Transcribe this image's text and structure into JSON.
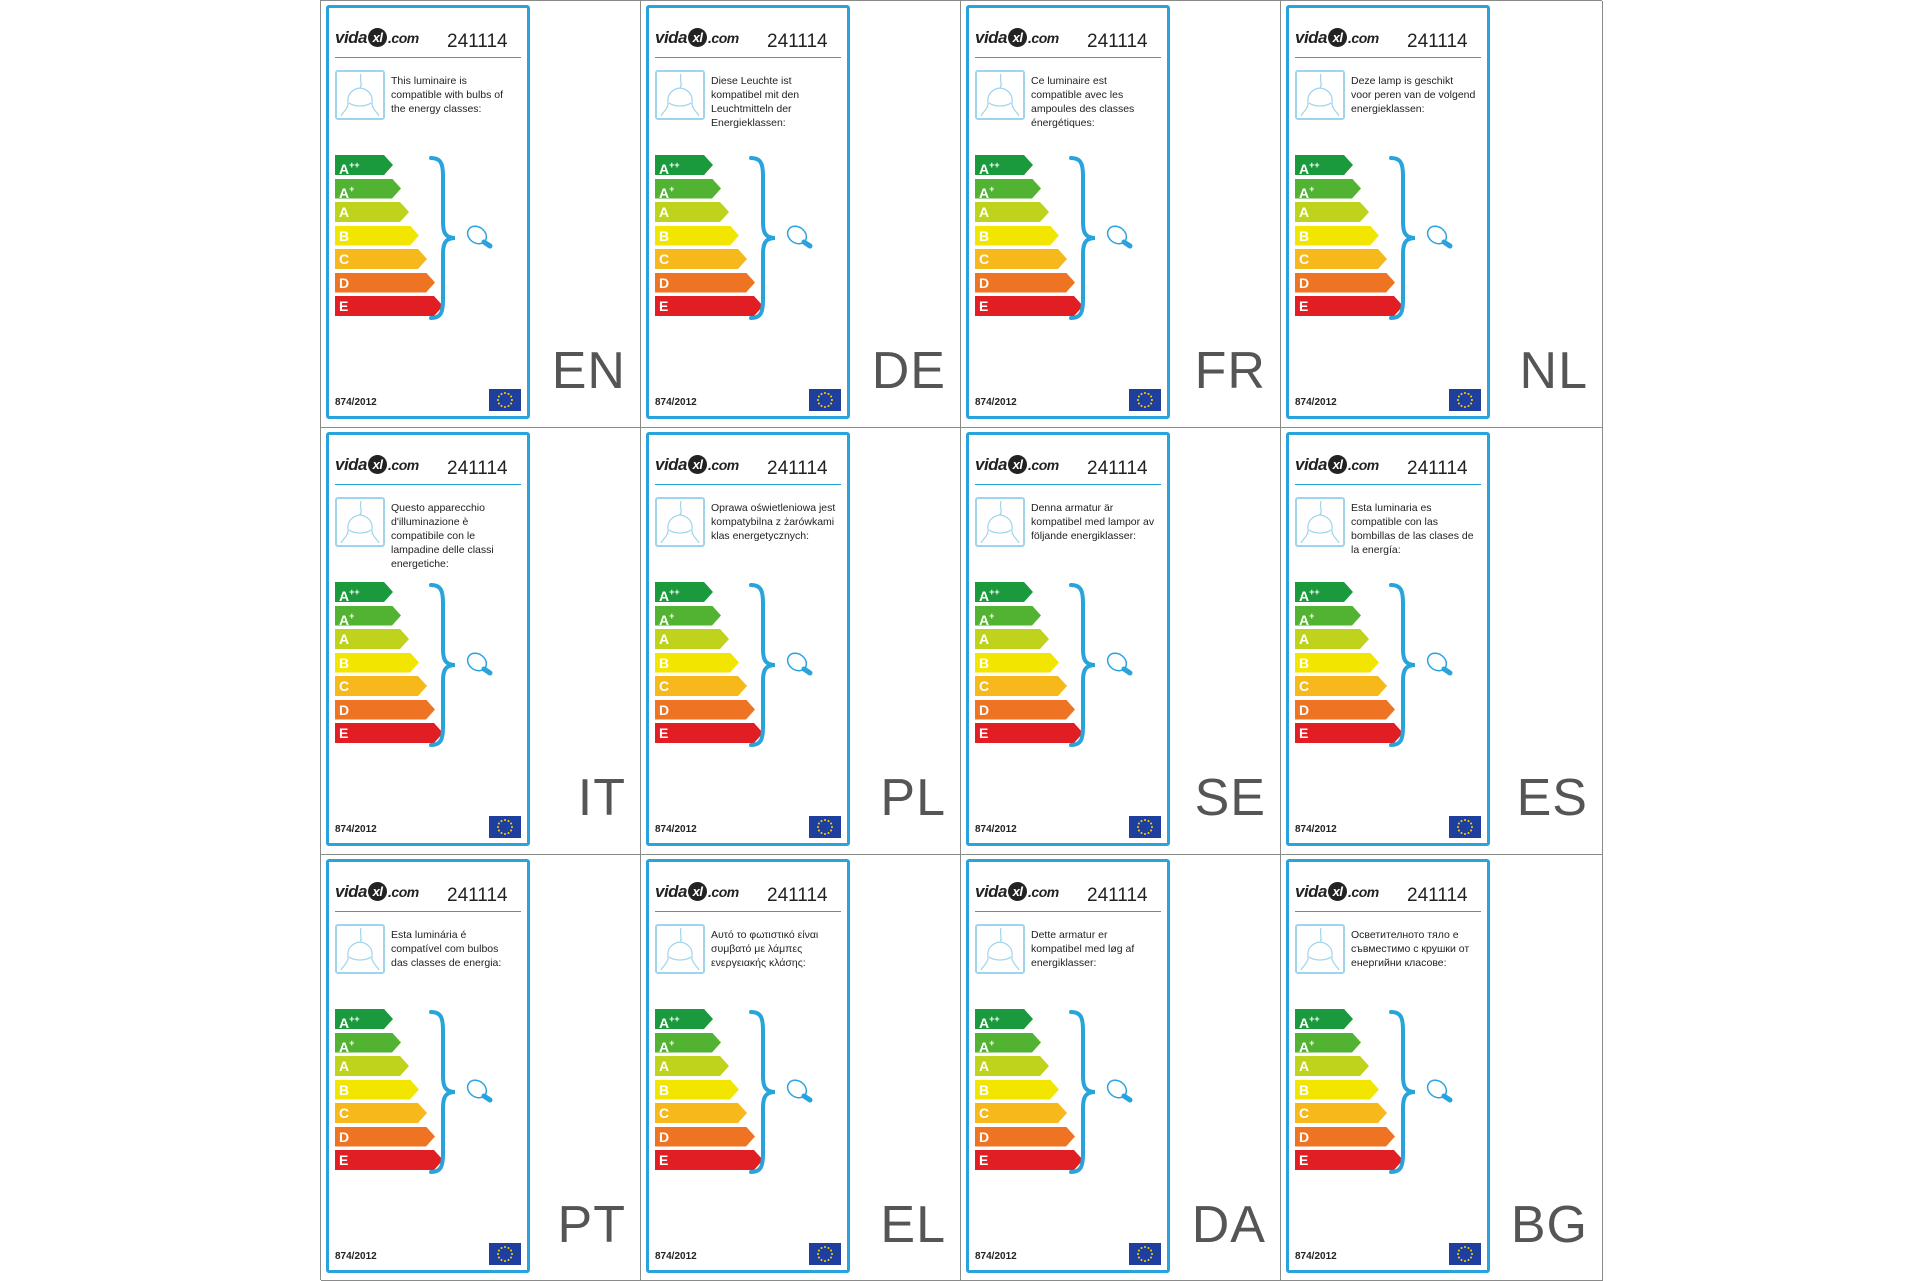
{
  "brand": {
    "name": "vida",
    "xl": "xl",
    "suffix": ".com"
  },
  "product_code": "241114",
  "regulation": "874/2012",
  "energy_classes": [
    {
      "letter": "A",
      "sup": "++",
      "color": "#1a9a3c"
    },
    {
      "letter": "A",
      "sup": "+",
      "color": "#52b232"
    },
    {
      "letter": "A",
      "sup": "",
      "color": "#bfd21c"
    },
    {
      "letter": "B",
      "sup": "",
      "color": "#f2e600"
    },
    {
      "letter": "C",
      "sup": "",
      "color": "#f7b81c"
    },
    {
      "letter": "D",
      "sup": "",
      "color": "#ee7322"
    },
    {
      "letter": "E",
      "sup": "",
      "color": "#e01e23"
    }
  ],
  "colors": {
    "frame": "#29a3dc",
    "eu_flag": "#1e3f9e",
    "eu_stars": "#ffd400"
  },
  "icons": {
    "luminaire": "lamp-outline-icon",
    "bulb": "bulb-icon",
    "flag": "eu-flag-icon"
  },
  "labels": [
    {
      "lang": "EN",
      "text": "This luminaire is compatible with bulbs of the energy classes:"
    },
    {
      "lang": "DE",
      "text": "Diese Leuchte ist kompatibel mit den Leuchtmitteln der Energieklassen:"
    },
    {
      "lang": "FR",
      "text": "Ce luminaire est compatible avec les ampoules des classes énergétiques:"
    },
    {
      "lang": "NL",
      "text": "Deze lamp is geschikt voor peren van de volgend energieklassen:"
    },
    {
      "lang": "IT",
      "text": "Questo apparecchio d'illuminazione è compatibile con le lampadine delle classi energetiche:"
    },
    {
      "lang": "PL",
      "text": "Oprawa oświetleniowa jest kompatybilna z żarówkami klas energetycznych:"
    },
    {
      "lang": "SE",
      "text": "Denna armatur är kompatibel med lampor av följande energiklasser:"
    },
    {
      "lang": "ES",
      "text": "Esta luminaria es compatible con las bombillas de las clases de la energía:"
    },
    {
      "lang": "PT",
      "text": "Esta luminária é compatível com bulbos das classes de energia:"
    },
    {
      "lang": "EL",
      "text": "Αυτό το φωτιστικό είναι συμβατό με λάμπες ενεργειακής κλάσης:"
    },
    {
      "lang": "DA",
      "text": "Dette armatur er kompatibel med løg af energiklasser:"
    },
    {
      "lang": "BG",
      "text": "Осветителното тяло е съвместимо с крушки от енергийни класове:"
    }
  ]
}
